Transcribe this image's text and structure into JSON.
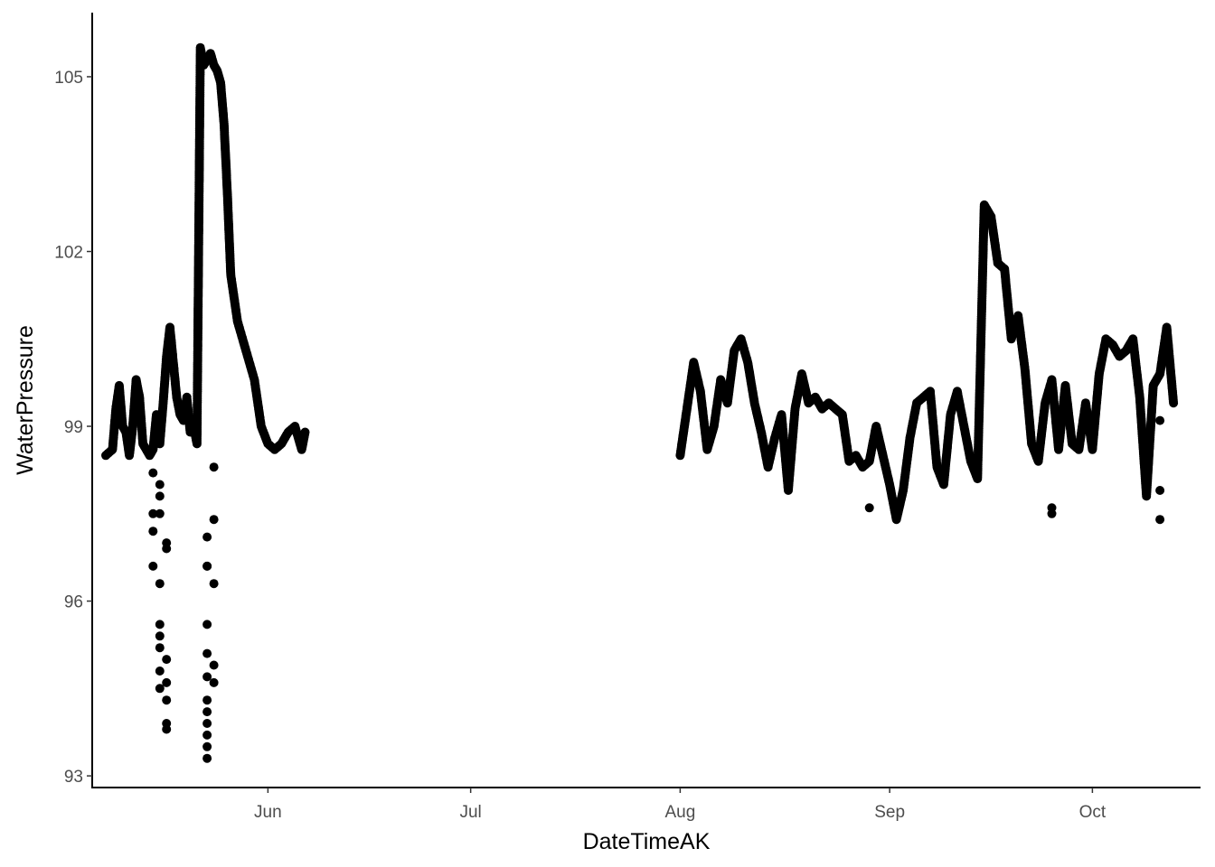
{
  "chart_data": {
    "type": "scatter",
    "title": "",
    "xlabel": "DateTimeAK",
    "ylabel": "WaterPressure",
    "x_type": "date",
    "xlim": [
      "2023-05-06",
      "2023-10-17"
    ],
    "ylim": [
      92.8,
      106.1
    ],
    "x_ticks": [
      {
        "date": "2023-06-01",
        "label": "Jun"
      },
      {
        "date": "2023-07-01",
        "label": "Jul"
      },
      {
        "date": "2023-08-01",
        "label": "Aug"
      },
      {
        "date": "2023-09-01",
        "label": "Sep"
      },
      {
        "date": "2023-10-01",
        "label": "Oct"
      }
    ],
    "y_ticks": [
      93,
      96,
      99,
      102,
      105
    ],
    "grid": false,
    "legend": "none",
    "point_color": "#000000",
    "series": [
      {
        "x": [
          "2023-05-08",
          "2023-05-09",
          "2023-05-09 12:00",
          "2023-05-10",
          "2023-05-10 12:00",
          "2023-05-11",
          "2023-05-11 12:00",
          "2023-05-12",
          "2023-05-12 12:00",
          "2023-05-13",
          "2023-05-13 12:00",
          "2023-05-14",
          "2023-05-14 12:00",
          "2023-05-15",
          "2023-05-15 12:00",
          "2023-05-16",
          "2023-05-16 12:00",
          "2023-05-17",
          "2023-05-17 12:00",
          "2023-05-18",
          "2023-05-18 12:00",
          "2023-05-19",
          "2023-05-19 12:00",
          "2023-05-20",
          "2023-05-20 12:00",
          "2023-05-21",
          "2023-05-21 12:00",
          "2023-05-22",
          "2023-05-22 12:00",
          "2023-05-23",
          "2023-05-23 12:00",
          "2023-05-24",
          "2023-05-24 12:00",
          "2023-05-25",
          "2023-05-25 12:00",
          "2023-05-26",
          "2023-05-26 12:00",
          "2023-05-27",
          "2023-05-27 12:00",
          "2023-05-28",
          "2023-05-28 12:00",
          "2023-05-29",
          "2023-05-29 12:00",
          "2023-05-30",
          "2023-05-30 12:00",
          "2023-05-31",
          "2023-06-01",
          "2023-06-02",
          "2023-06-03",
          "2023-06-04",
          "2023-06-05",
          "2023-06-06",
          "2023-06-06 12:00"
        ],
        "y": [
          98.5,
          98.6,
          99.3,
          99.7,
          99.0,
          98.9,
          98.5,
          99.0,
          99.8,
          99.5,
          98.7,
          98.6,
          98.5,
          98.6,
          99.2,
          98.7,
          99.4,
          100.2,
          100.7,
          100.1,
          99.5,
          99.2,
          99.1,
          99.5,
          98.9,
          99.0,
          98.7,
          105.5,
          105.2,
          105.3,
          105.4,
          105.2,
          105.1,
          104.9,
          104.2,
          103.0,
          101.6,
          101.2,
          100.8,
          100.6,
          100.4,
          100.2,
          100.0,
          99.8,
          99.4,
          99.0,
          98.7,
          98.6,
          98.7,
          98.9,
          99.0,
          98.6,
          98.9
        ]
      },
      {
        "x": [
          "2023-08-01",
          "2023-08-02",
          "2023-08-03",
          "2023-08-04",
          "2023-08-05",
          "2023-08-06",
          "2023-08-07",
          "2023-08-08",
          "2023-08-09",
          "2023-08-10",
          "2023-08-11",
          "2023-08-12",
          "2023-08-13",
          "2023-08-14",
          "2023-08-15",
          "2023-08-16",
          "2023-08-17",
          "2023-08-18",
          "2023-08-19",
          "2023-08-20",
          "2023-08-21",
          "2023-08-22",
          "2023-08-23",
          "2023-08-24",
          "2023-08-25",
          "2023-08-26",
          "2023-08-27",
          "2023-08-28",
          "2023-08-29",
          "2023-08-30",
          "2023-08-31",
          "2023-09-01",
          "2023-09-02",
          "2023-09-03",
          "2023-09-04",
          "2023-09-05",
          "2023-09-06",
          "2023-09-07",
          "2023-09-08",
          "2023-09-09",
          "2023-09-10",
          "2023-09-11",
          "2023-09-12",
          "2023-09-13",
          "2023-09-14",
          "2023-09-15",
          "2023-09-16",
          "2023-09-17",
          "2023-09-18",
          "2023-09-19",
          "2023-09-20",
          "2023-09-21",
          "2023-09-22",
          "2023-09-23",
          "2023-09-24",
          "2023-09-25",
          "2023-09-26",
          "2023-09-27",
          "2023-09-28",
          "2023-09-29",
          "2023-09-30",
          "2023-10-01",
          "2023-10-02",
          "2023-10-03",
          "2023-10-04",
          "2023-10-05",
          "2023-10-06",
          "2023-10-07",
          "2023-10-08",
          "2023-10-09",
          "2023-10-10",
          "2023-10-11",
          "2023-10-12",
          "2023-10-13"
        ],
        "y": [
          98.5,
          99.3,
          100.1,
          99.6,
          98.6,
          99.0,
          99.8,
          99.4,
          100.3,
          100.5,
          100.1,
          99.4,
          98.9,
          98.3,
          98.8,
          99.2,
          97.9,
          99.3,
          99.9,
          99.4,
          99.5,
          99.3,
          99.4,
          99.3,
          99.2,
          98.4,
          98.5,
          98.3,
          98.4,
          99.0,
          98.5,
          98.0,
          97.4,
          97.9,
          98.8,
          99.4,
          99.5,
          99.6,
          98.3,
          98.0,
          99.2,
          99.6,
          99.0,
          98.4,
          98.1,
          102.8,
          102.6,
          101.8,
          101.7,
          100.5,
          100.9,
          100.0,
          98.7,
          98.4,
          99.4,
          99.8,
          98.6,
          99.7,
          98.7,
          98.6,
          99.4,
          98.6,
          99.9,
          100.5,
          100.4,
          100.2,
          100.3,
          100.5,
          99.5,
          97.8,
          99.7,
          99.9,
          100.7,
          99.4
        ]
      },
      {
        "x": [
          "2023-05-15",
          "2023-05-15",
          "2023-05-15",
          "2023-05-15",
          "2023-05-16",
          "2023-05-16",
          "2023-05-16",
          "2023-05-16",
          "2023-05-16",
          "2023-05-16",
          "2023-05-16",
          "2023-05-16",
          "2023-05-16",
          "2023-05-17",
          "2023-05-17",
          "2023-05-17",
          "2023-05-17",
          "2023-05-17",
          "2023-05-17",
          "2023-05-17",
          "2023-05-23",
          "2023-05-23",
          "2023-05-23",
          "2023-05-23",
          "2023-05-23",
          "2023-05-23",
          "2023-05-23",
          "2023-05-23",
          "2023-05-23",
          "2023-05-23",
          "2023-05-23",
          "2023-05-23",
          "2023-05-24",
          "2023-05-24",
          "2023-05-24",
          "2023-05-24",
          "2023-05-24",
          "2023-08-29",
          "2023-09-25",
          "2023-09-25",
          "2023-10-11",
          "2023-10-11",
          "2023-10-11"
        ],
        "y": [
          98.2,
          97.5,
          97.2,
          96.6,
          98.0,
          97.8,
          96.3,
          95.6,
          95.4,
          94.8,
          94.5,
          95.2,
          97.5,
          97.0,
          96.9,
          95.0,
          94.6,
          94.3,
          93.8,
          93.9,
          97.1,
          96.6,
          95.6,
          95.1,
          94.7,
          94.3,
          93.9,
          93.7,
          93.5,
          93.3,
          94.1,
          96.6,
          98.3,
          97.4,
          96.3,
          94.6,
          94.9,
          97.6,
          97.6,
          97.5,
          97.4,
          97.9,
          99.1
        ]
      }
    ]
  }
}
